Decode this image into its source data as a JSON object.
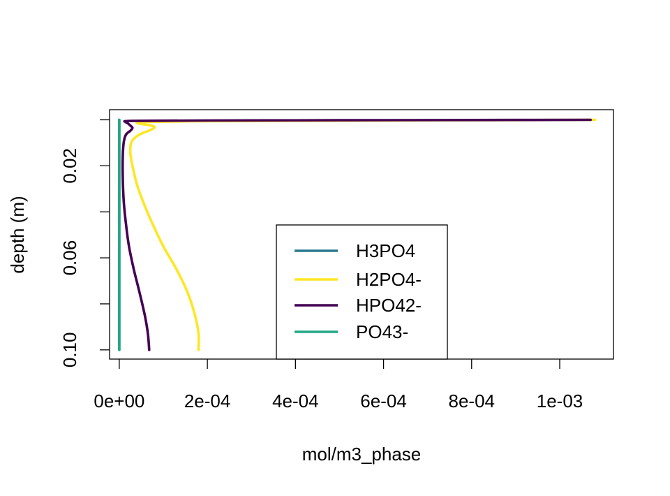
{
  "chart_data": {
    "type": "line",
    "title": "",
    "xlabel": "mol/m3_phase",
    "ylabel": "depth (m)",
    "xlim": [
      -2.2e-05,
      0.001122
    ],
    "ylim": [
      0.104,
      -0.0044
    ],
    "x_ticks": [
      0,
      0.0002,
      0.0004,
      0.0006,
      0.0008,
      0.001
    ],
    "x_tick_labels": [
      "0e+00",
      "2e-04",
      "4e-04",
      "6e-04",
      "8e-04",
      "1e-03"
    ],
    "y_ticks": [
      0,
      0.02,
      0.04,
      0.06,
      0.08,
      0.1
    ],
    "y_tick_labels": [
      "",
      "0.02",
      "",
      "0.06",
      "",
      "0.10"
    ],
    "grid": false,
    "legend_position": "bottom-center",
    "series": [
      {
        "name": "H3PO4",
        "color": "#2a788e",
        "points": [
          [
            0,
            0
          ],
          [
            0,
            0.1
          ]
        ]
      },
      {
        "name": "H2PO4-",
        "color": "#fde725",
        "points": [
          [
            0.00108,
            0.0
          ],
          [
            0.0008,
            0.0002
          ],
          [
            0.0005,
            0.0004
          ],
          [
            0.0002,
            0.0006
          ],
          [
            6e-05,
            0.0009
          ],
          [
            4e-05,
            0.0013
          ],
          [
            5e-05,
            0.0018
          ],
          [
            7e-05,
            0.0024
          ],
          [
            8e-05,
            0.0032
          ],
          [
            7e-05,
            0.0045
          ],
          [
            4.5e-05,
            0.0065
          ],
          [
            2.8e-05,
            0.0095
          ],
          [
            2.5e-05,
            0.014
          ],
          [
            3e-05,
            0.02
          ],
          [
            4e-05,
            0.028
          ],
          [
            5.5e-05,
            0.036
          ],
          [
            7.5e-05,
            0.045
          ],
          [
            0.0001,
            0.055
          ],
          [
            0.00013,
            0.065
          ],
          [
            0.000155,
            0.075
          ],
          [
            0.000172,
            0.085
          ],
          [
            0.00018,
            0.093
          ],
          [
            0.00018,
            0.1
          ]
        ]
      },
      {
        "name": "HPO42-",
        "color": "#440154",
        "points": [
          [
            0.00107,
            0.0
          ],
          [
            0.0008,
            0.0001
          ],
          [
            0.0005,
            0.0002
          ],
          [
            0.0002,
            0.0003
          ],
          [
            3e-05,
            0.0005
          ],
          [
            1.5e-05,
            0.0009
          ],
          [
            2e-05,
            0.0016
          ],
          [
            2.5e-05,
            0.0025
          ],
          [
            3e-05,
            0.0035
          ],
          [
            2.5e-05,
            0.0048
          ],
          [
            1.5e-05,
            0.0065
          ],
          [
            1e-05,
            0.01
          ],
          [
            8e-06,
            0.016
          ],
          [
            8e-06,
            0.025
          ],
          [
            1e-05,
            0.035
          ],
          [
            1.5e-05,
            0.045
          ],
          [
            2.2e-05,
            0.055
          ],
          [
            3.3e-05,
            0.065
          ],
          [
            4.6e-05,
            0.075
          ],
          [
            5.8e-05,
            0.085
          ],
          [
            6.5e-05,
            0.093
          ],
          [
            6.8e-05,
            0.1
          ]
        ]
      },
      {
        "name": "PO43-",
        "color": "#22a884",
        "points": [
          [
            0,
            0
          ],
          [
            0,
            0.1
          ]
        ]
      }
    ]
  }
}
